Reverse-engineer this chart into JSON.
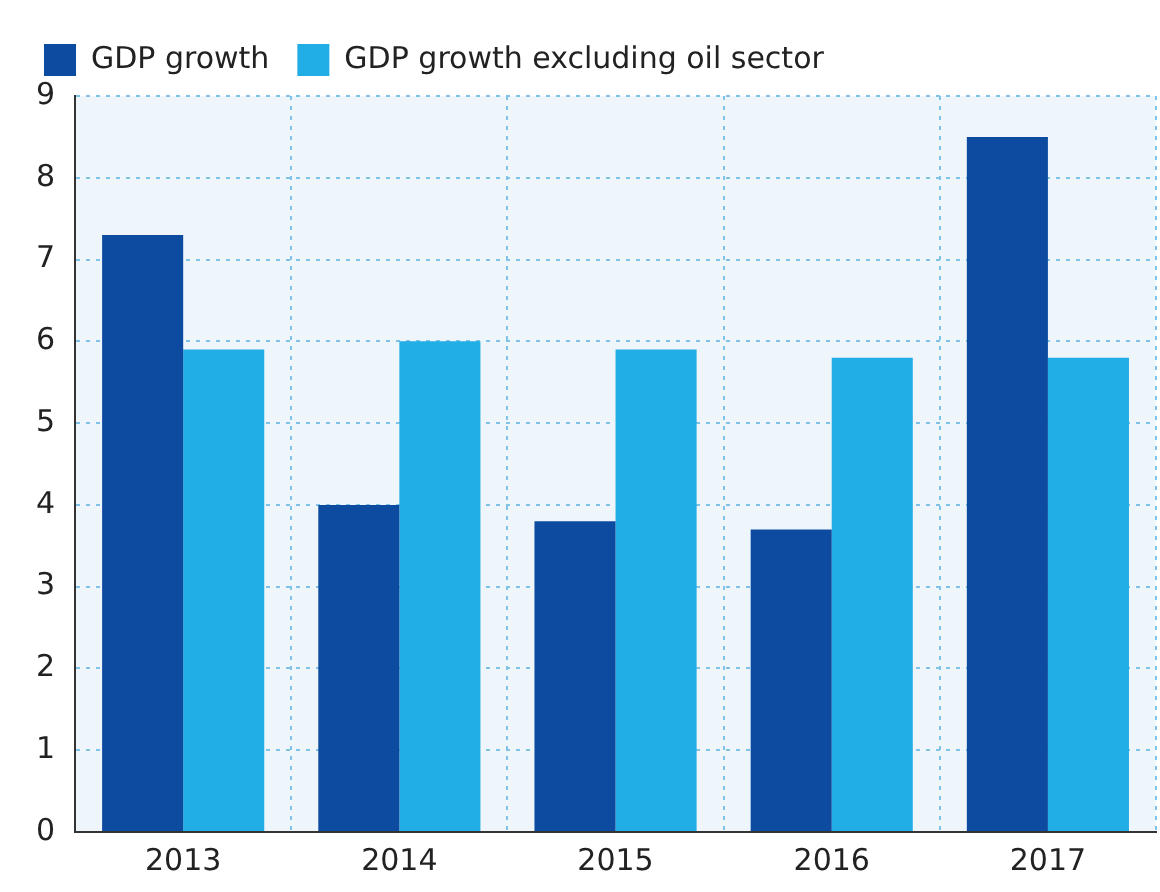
{
  "chart_data": {
    "type": "bar",
    "categories": [
      "2013",
      "2014",
      "2015",
      "2016",
      "2017"
    ],
    "series": [
      {
        "name": "GDP growth",
        "color": "#0d4ba0",
        "values": [
          7.3,
          4.0,
          3.8,
          3.7,
          8.5
        ]
      },
      {
        "name": "GDP growth excluding oil sector",
        "color": "#21ade5",
        "values": [
          5.9,
          6.0,
          5.9,
          5.8,
          5.8
        ]
      }
    ],
    "ylim": [
      0,
      9
    ],
    "yticks": [
      0,
      1,
      2,
      3,
      4,
      5,
      6,
      7,
      8,
      9
    ],
    "grid": true,
    "legend": "top left"
  }
}
